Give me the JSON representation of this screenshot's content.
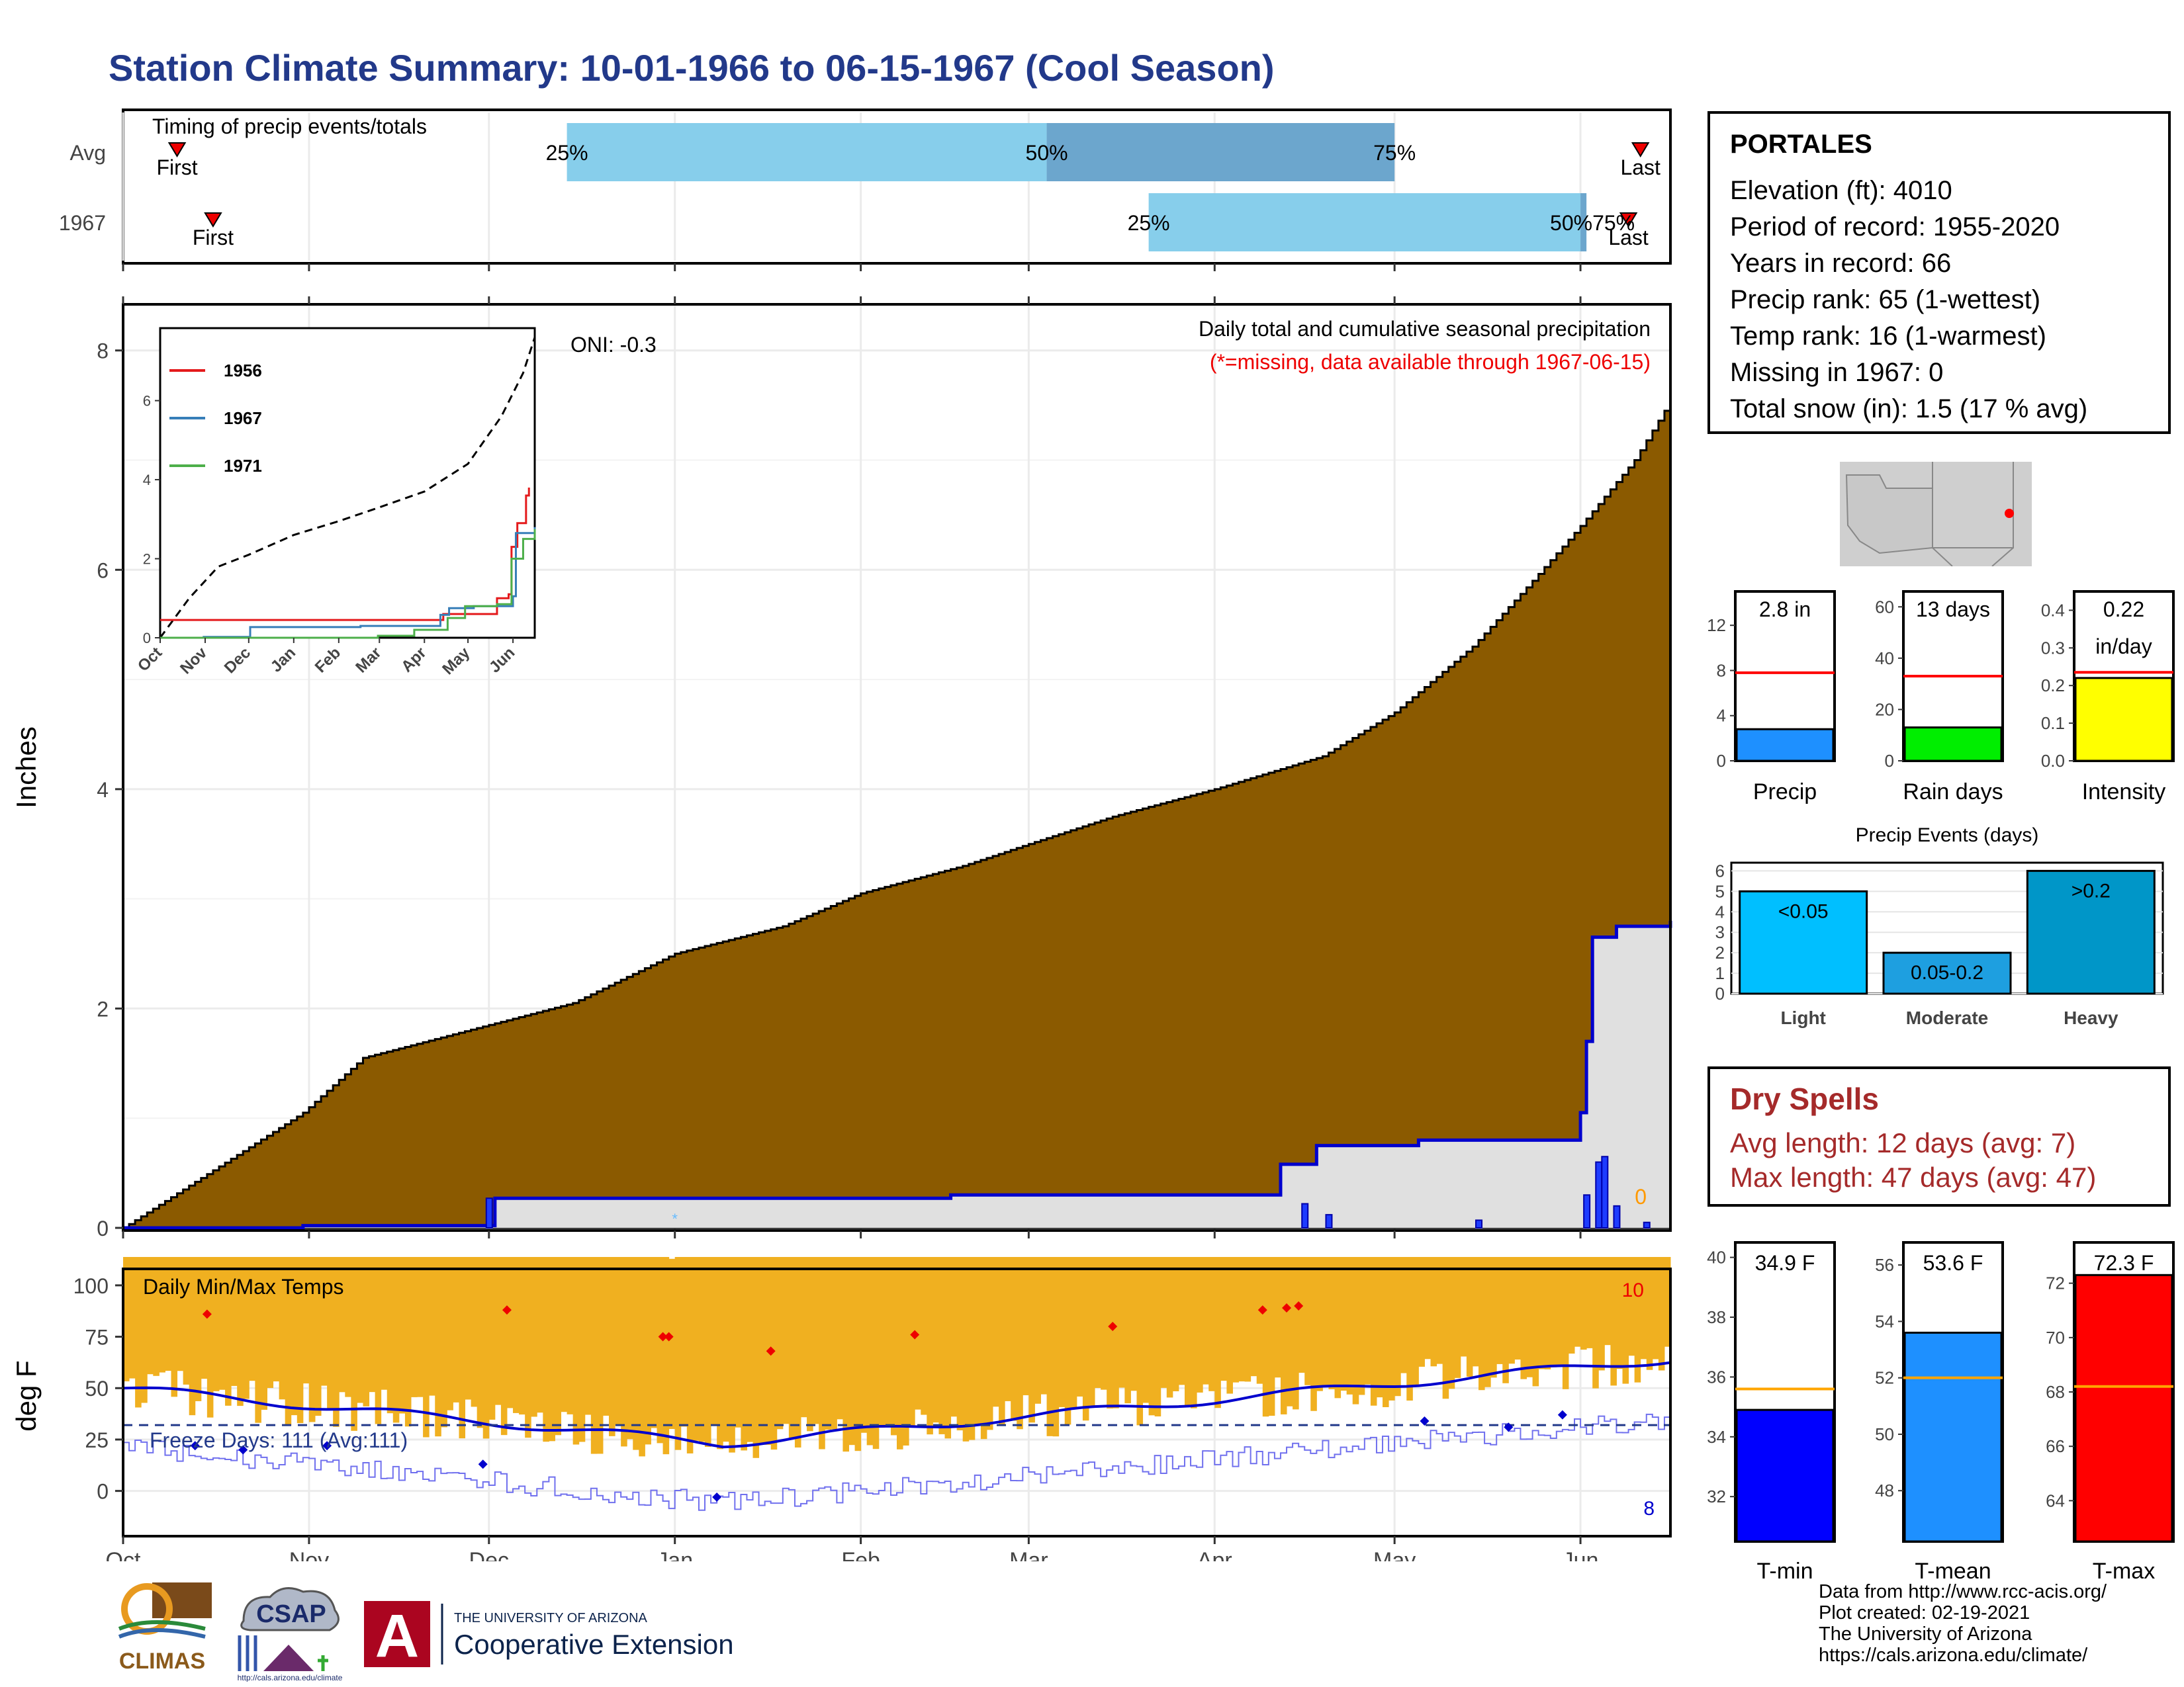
{
  "title": "Station Climate Summary: 10-01-1966 to 06-15-1967 (Cool Season)",
  "colors": {
    "title": "#22398a",
    "precip_fill": "#8B5A00",
    "precip_line": "#0000CD",
    "normal_fill": "#e0e0e0",
    "bar_light_blue": "#87CEEB",
    "bar_mid_blue": "#6CA6CD",
    "temp_bar": "#F0B020",
    "tmax": "#ff0000",
    "tmin": "#0000cd",
    "dry": "#a52a2a"
  },
  "timing": {
    "title": "Timing of precip events/totals",
    "rows": [
      "Avg",
      "1967"
    ],
    "first_label": "First",
    "last_label": "Last",
    "avg": {
      "first": "Oct 10",
      "p25": "Dec 14",
      "p50": "Mar 4",
      "p75": "May 1",
      "last": "Jun 11"
    },
    "y1967": {
      "first": "Oct 16",
      "p25": "Mar 21",
      "p50": "Jun 1",
      "p75": "Jun 2",
      "last": "Jun 9"
    },
    "labels": {
      "p25": "25%",
      "p50": "50%",
      "p75": "75%",
      "y1967_p50_75": "50%75%"
    }
  },
  "precip": {
    "ylabel": "Inches",
    "onii": "ONI: -0.3",
    "caption": "Daily total and cumulative seasonal precipitation",
    "missing_note": "(*=missing, data available through 1967-06-15)",
    "missing_count": "0",
    "y_ticks": [
      "0",
      "2",
      "4",
      "6",
      "8"
    ],
    "x_ticks": [
      "Oct",
      "Nov",
      "Dec",
      "Jan",
      "Feb",
      "Mar",
      "Apr",
      "May",
      "Jun"
    ]
  },
  "inset": {
    "legend": [
      "1956",
      "1967",
      "1971"
    ],
    "y_ticks": [
      "0",
      "2",
      "4",
      "6"
    ],
    "x_ticks": [
      "Oct",
      "Nov",
      "Dec",
      "Jan",
      "Feb",
      "Mar",
      "Apr",
      "May",
      "Jun"
    ]
  },
  "temps": {
    "title": "Daily Min/Max Temps",
    "ylabel": "deg F",
    "freeze_label": "Freeze Days: 111 (Avg:111)",
    "record_high_count": "10",
    "record_low_count": "8",
    "y_ticks": [
      "0",
      "25",
      "50",
      "75",
      "100"
    ],
    "x_ticks": [
      "Oct",
      "Nov",
      "Dec",
      "Jan",
      "Feb",
      "Mar",
      "Apr",
      "May",
      "Jun"
    ]
  },
  "station": {
    "name": "PORTALES",
    "lines": [
      "Elevation (ft): 4010",
      "Period of record: 1955-2020",
      "Years in record: 66",
      "Precip rank: 65 (1-wettest)",
      "Temp rank: 16 (1-warmest)",
      "Missing in 1967: 0",
      "Total snow (in): 1.5 (17 % avg)"
    ]
  },
  "mini_bars": [
    {
      "label": "Precip",
      "value_text": "2.8 in",
      "value": 2.8,
      "avg": 7.8,
      "ymax": 15,
      "ticks": [
        "0",
        "4",
        "8",
        "12"
      ],
      "color": "#1E90FF"
    },
    {
      "label": "Rain days",
      "value_text": "13 days",
      "value": 13,
      "avg": 33,
      "ymax": 66,
      "ticks": [
        "0",
        "20",
        "40",
        "60"
      ],
      "color": "#00EE00"
    },
    {
      "label": "Intensity",
      "value_text": "0.22",
      "value_text2": "in/day",
      "value": 0.22,
      "avg": 0.235,
      "ymax": 0.45,
      "ticks": [
        "0.0",
        "0.1",
        "0.2",
        "0.3",
        "0.4"
      ],
      "color": "#FFFF00"
    }
  ],
  "events": {
    "title": "Precip Events (days)",
    "categories": [
      "Light",
      "Moderate",
      "Heavy"
    ],
    "values": [
      5,
      2,
      6
    ],
    "bar_labels": [
      "<0.05",
      "0.05-0.2",
      ">0.2"
    ],
    "y_ticks": [
      "0",
      "1",
      "2",
      "3",
      "4",
      "5",
      "6"
    ]
  },
  "dry": {
    "title": "Dry Spells",
    "avg_line": "Avg length: 12 days (avg: 7)",
    "max_line": "Max length: 47 days (avg: 47)"
  },
  "temp_bars": [
    {
      "label": "T-min",
      "value_text": "34.9 F",
      "value": 34.9,
      "avg": 35.6,
      "ymin": 30.5,
      "ymax": 40.5,
      "ticks": [
        "32",
        "34",
        "36",
        "38",
        "40"
      ],
      "color": "#0000FF"
    },
    {
      "label": "T-mean",
      "value_text": "53.6 F",
      "value": 53.6,
      "avg": 52.0,
      "ymin": 46.2,
      "ymax": 56.8,
      "ticks": [
        "48",
        "50",
        "52",
        "54",
        "56"
      ],
      "color": "#1E90FF"
    },
    {
      "label": "T-max",
      "value_text": "72.3 F",
      "value": 72.3,
      "avg": 68.2,
      "ymin": 62.5,
      "ymax": 73.5,
      "ticks": [
        "64",
        "66",
        "68",
        "70",
        "72"
      ],
      "color": "#FF0000"
    }
  ],
  "credits": [
    "Data from http://www.rcc-acis.org/",
    "Plot created: 02-19-2021",
    "The University of Arizona",
    "https://cals.arizona.edu/climate/"
  ],
  "logos": {
    "climas": "CLIMAS",
    "csap": "CSAP",
    "csap_url": "http://cals.arizona.edu/climate",
    "ua_small": "THE UNIVERSITY OF ARIZONA",
    "ua_big": "Cooperative Extension",
    "ua_letter": "A"
  }
}
